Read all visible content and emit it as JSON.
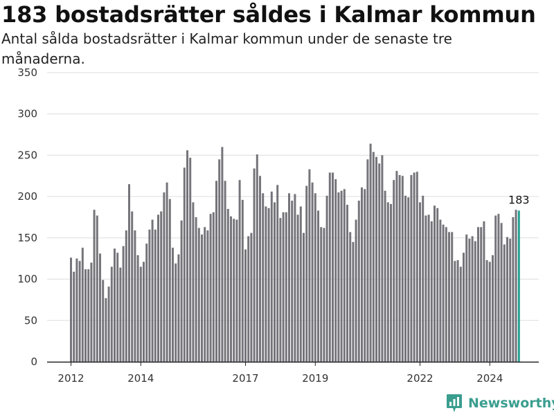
{
  "title": "183 bostadsrätter såldes i Kalmar kommun",
  "subtitle": "Antal sålda bostadsrätter i Kalmar kommun under de senaste tre månaderna.",
  "brand": "Newsworthy",
  "colors": {
    "bar": "#75747a",
    "highlight": "#23a091",
    "axis": "#222222",
    "grid": "#dddddd",
    "brand": "#3a9e8f"
  },
  "chart_data": {
    "type": "bar",
    "title": "183 bostadsrätter såldes i Kalmar kommun",
    "subtitle": "Antal sålda bostadsrätter i Kalmar kommun under de senaste tre månaderna.",
    "xlabel": "",
    "ylabel": "",
    "ylim": [
      0,
      350
    ],
    "yticks": [
      0,
      50,
      100,
      150,
      200,
      250,
      300,
      350
    ],
    "xticks": [
      "2012",
      "2014",
      "2017",
      "2019",
      "2022",
      "2024"
    ],
    "grid": true,
    "x_start": "2012-01",
    "x_interval": "month",
    "highlight_last": true,
    "last_value_label": "183",
    "values": [
      126,
      109,
      125,
      122,
      138,
      112,
      112,
      120,
      184,
      177,
      131,
      99,
      77,
      91,
      115,
      137,
      132,
      114,
      140,
      159,
      215,
      182,
      159,
      129,
      115,
      121,
      143,
      160,
      172,
      160,
      178,
      182,
      205,
      217,
      197,
      138,
      119,
      130,
      171,
      235,
      256,
      247,
      193,
      175,
      162,
      154,
      163,
      159,
      179,
      181,
      219,
      245,
      260,
      219,
      185,
      176,
      173,
      172,
      220,
      196,
      136,
      152,
      156,
      234,
      251,
      225,
      204,
      188,
      186,
      206,
      193,
      214,
      174,
      181,
      181,
      204,
      195,
      203,
      178,
      188,
      156,
      213,
      233,
      217,
      204,
      183,
      163,
      162,
      201,
      229,
      229,
      221,
      205,
      207,
      209,
      190,
      157,
      145,
      172,
      195,
      211,
      209,
      245,
      264,
      254,
      248,
      240,
      250,
      207,
      193,
      191,
      220,
      231,
      226,
      225,
      201,
      199,
      226,
      229,
      230,
      193,
      201,
      177,
      178,
      170,
      189,
      186,
      172,
      166,
      163,
      157,
      157,
      122,
      123,
      115,
      132,
      154,
      149,
      152,
      146,
      163,
      163,
      170,
      123,
      121,
      129,
      177,
      179,
      168,
      142,
      151,
      149,
      175,
      184,
      183
    ]
  }
}
